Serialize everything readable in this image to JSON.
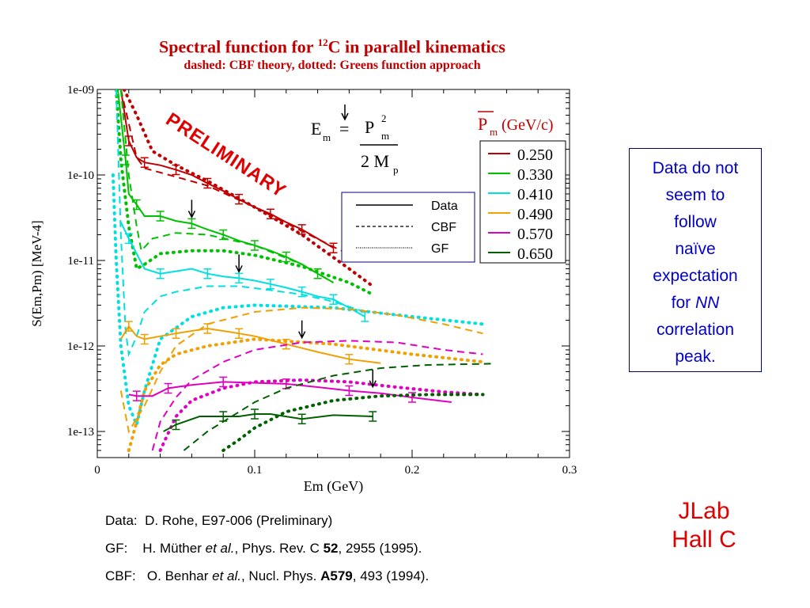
{
  "slide": {
    "title_pre": "Spectral function for ",
    "title_sup": "12",
    "title_post": "C in parallel kinematics",
    "subtitle": "dashed: CBF theory, dotted: Greens function approach",
    "note": [
      "Data do not",
      "seem to",
      "follow",
      "naïve",
      "expectation",
      "for NN",
      "correlation",
      "peak."
    ],
    "jlab": [
      "JLab",
      "Hall C"
    ],
    "refs": [
      {
        "label": "Data:",
        "text": "D. Rohe, E97-006 (Preliminary)"
      },
      {
        "label": "GF:",
        "text": "H. Müther et al., Phys. Rev. C 52, 2955 (1995)."
      },
      {
        "label": "CBF:",
        "text": "O. Benhar et al., Nucl. Phys. A579, 493 (1994)."
      }
    ]
  },
  "chart_data": {
    "type": "line",
    "y_scale": "log",
    "xlim": [
      0,
      0.3
    ],
    "ylim": [
      6e-14,
      1e-09
    ],
    "x_ticks": [
      "0",
      "0.1",
      "0.2",
      "0.3"
    ],
    "y_ticks": [
      "1e-13",
      "1e-12",
      "1e-11",
      "1e-10",
      "1e-09"
    ],
    "xlabel": "Em (GeV)",
    "ylabel": "S(Em,Pm) [MeV-4]",
    "annotation_preliminary": "PRELIMINARY",
    "formula": {
      "lhs": "E",
      "lhs_sub": "m",
      "eq": "=",
      "num": "P",
      "num_sup": "2",
      "num_sub": "m",
      "den": "2 M",
      "den_sub": "p"
    },
    "line_legend": [
      "Data",
      "CBF",
      "GF"
    ],
    "pm_legend_title": "P",
    "pm_legend_sub": "m",
    "pm_legend_unit": " (GeV/c)",
    "series": [
      {
        "name": "0.250",
        "color": "#c00000",
        "data": [
          [
            0.015,
            1e-09
          ],
          [
            0.02,
            2.5e-10
          ],
          [
            0.025,
            1.6e-10
          ],
          [
            0.03,
            1.4e-10
          ],
          [
            0.04,
            1.3e-10
          ],
          [
            0.05,
            1.15e-10
          ],
          [
            0.06,
            1e-10
          ],
          [
            0.07,
            8e-11
          ],
          [
            0.08,
            6.5e-11
          ],
          [
            0.09,
            5.2e-11
          ],
          [
            0.1,
            4.2e-11
          ],
          [
            0.11,
            3.5e-11
          ],
          [
            0.12,
            2.8e-11
          ],
          [
            0.13,
            2.3e-11
          ],
          [
            0.14,
            1.8e-11
          ],
          [
            0.15,
            1.4e-11
          ]
        ],
        "cbf": [
          [
            0.015,
            1e-09
          ],
          [
            0.025,
            1.6e-10
          ],
          [
            0.03,
            1.2e-10
          ],
          [
            0.05,
            9.5e-11
          ],
          [
            0.07,
            7.5e-11
          ],
          [
            0.1,
            4.2e-11
          ],
          [
            0.13,
            2.2e-11
          ],
          [
            0.155,
            1.3e-11
          ]
        ],
        "gf": [
          [
            0.017,
            1e-09
          ],
          [
            0.025,
            5e-10
          ],
          [
            0.035,
            1.9e-10
          ],
          [
            0.05,
            1.3e-10
          ],
          [
            0.07,
            8.5e-11
          ],
          [
            0.1,
            4.2e-11
          ],
          [
            0.13,
            2e-11
          ],
          [
            0.16,
            8e-12
          ],
          [
            0.175,
            5e-12
          ]
        ],
        "arrow_x": null
      },
      {
        "name": "0.330",
        "color": "#00c000",
        "data": [
          [
            0.013,
            1e-09
          ],
          [
            0.018,
            1.5e-10
          ],
          [
            0.02,
            6e-11
          ],
          [
            0.025,
            4.5e-11
          ],
          [
            0.03,
            3.3e-11
          ],
          [
            0.04,
            3.3e-11
          ],
          [
            0.05,
            2.9e-11
          ],
          [
            0.06,
            2.7e-11
          ],
          [
            0.07,
            2.3e-11
          ],
          [
            0.08,
            2e-11
          ],
          [
            0.09,
            1.7e-11
          ],
          [
            0.1,
            1.5e-11
          ],
          [
            0.11,
            1.3e-11
          ],
          [
            0.12,
            1.1e-11
          ],
          [
            0.13,
            9e-12
          ],
          [
            0.14,
            7e-12
          ],
          [
            0.15,
            5.5e-12
          ]
        ],
        "cbf": [
          [
            0.015,
            1e-09
          ],
          [
            0.02,
            1e-10
          ],
          [
            0.025,
            2.5e-11
          ],
          [
            0.028,
            1.3e-11
          ],
          [
            0.035,
            1.8e-11
          ],
          [
            0.05,
            2.1e-11
          ],
          [
            0.07,
            2e-11
          ],
          [
            0.1,
            1.5e-11
          ],
          [
            0.13,
            9e-12
          ],
          [
            0.15,
            5.5e-12
          ]
        ],
        "gf": [
          [
            0.012,
            1e-09
          ],
          [
            0.015,
            1.5e-10
          ],
          [
            0.02,
            2.5e-11
          ],
          [
            0.025,
            8e-12
          ],
          [
            0.03,
            9e-12
          ],
          [
            0.04,
            1.2e-11
          ],
          [
            0.06,
            1.3e-11
          ],
          [
            0.08,
            1.3e-11
          ],
          [
            0.1,
            1.15e-11
          ],
          [
            0.13,
            8.5e-12
          ],
          [
            0.16,
            5.5e-12
          ],
          [
            0.175,
            4e-12
          ]
        ],
        "arrow_x": 0.06
      },
      {
        "name": "0.410",
        "color": "#00e0e0",
        "data": [
          [
            0.015,
            2.8e-11
          ],
          [
            0.02,
            1.8e-11
          ],
          [
            0.03,
            8e-12
          ],
          [
            0.04,
            7e-12
          ],
          [
            0.06,
            8e-12
          ],
          [
            0.07,
            7e-12
          ],
          [
            0.08,
            6.5e-12
          ],
          [
            0.09,
            6.2e-12
          ],
          [
            0.1,
            5.8e-12
          ],
          [
            0.11,
            5.3e-12
          ],
          [
            0.12,
            4.8e-12
          ],
          [
            0.13,
            4.3e-12
          ],
          [
            0.14,
            3.8e-12
          ],
          [
            0.15,
            3.5e-12
          ],
          [
            0.16,
            2.8e-12
          ],
          [
            0.17,
            2.2e-12
          ]
        ],
        "cbf": [
          [
            0.012,
            1e-09
          ],
          [
            0.015,
            2e-11
          ],
          [
            0.018,
            1.5e-12
          ],
          [
            0.02,
            8e-13
          ],
          [
            0.025,
            1.3e-12
          ],
          [
            0.03,
            2.5e-12
          ],
          [
            0.04,
            3.8e-12
          ],
          [
            0.05,
            4.3e-12
          ],
          [
            0.07,
            5e-12
          ],
          [
            0.09,
            5e-12
          ],
          [
            0.11,
            4.5e-12
          ],
          [
            0.13,
            4e-12
          ],
          [
            0.15,
            3.3e-12
          ],
          [
            0.17,
            2.5e-12
          ]
        ],
        "gf": [
          [
            0.01,
            1e-10
          ],
          [
            0.012,
            1e-11
          ],
          [
            0.015,
            1e-12
          ],
          [
            0.02,
            2e-13
          ],
          [
            0.025,
            1.2e-13
          ],
          [
            0.03,
            3e-13
          ],
          [
            0.04,
            1.2e-12
          ],
          [
            0.06,
            2.2e-12
          ],
          [
            0.08,
            2.8e-12
          ],
          [
            0.1,
            3e-12
          ],
          [
            0.15,
            2.8e-12
          ],
          [
            0.2,
            2.2e-12
          ],
          [
            0.245,
            1.8e-12
          ]
        ],
        "arrow_x": 0.09
      },
      {
        "name": "0.490",
        "color": "#f0a000",
        "data": [
          [
            0.015,
            1.2e-12
          ],
          [
            0.02,
            1.7e-12
          ],
          [
            0.025,
            1.3e-12
          ],
          [
            0.03,
            1.2e-12
          ],
          [
            0.04,
            1.3e-12
          ],
          [
            0.05,
            1.4e-12
          ],
          [
            0.06,
            1.5e-12
          ],
          [
            0.07,
            1.6e-12
          ],
          [
            0.08,
            1.5e-12
          ],
          [
            0.09,
            1.4e-12
          ],
          [
            0.1,
            1.3e-12
          ],
          [
            0.12,
            1.05e-12
          ],
          [
            0.14,
            8.5e-13
          ],
          [
            0.16,
            7e-13
          ],
          [
            0.18,
            6.3e-13
          ]
        ],
        "cbf": [
          [
            0.015,
            3e-13
          ],
          [
            0.02,
            1e-13
          ],
          [
            0.03,
            2e-13
          ],
          [
            0.04,
            5e-13
          ],
          [
            0.05,
            1e-12
          ],
          [
            0.07,
            1.8e-12
          ],
          [
            0.1,
            2.5e-12
          ],
          [
            0.13,
            2.8e-12
          ],
          [
            0.16,
            2.7e-12
          ],
          [
            0.19,
            2.3e-12
          ],
          [
            0.22,
            1.8e-12
          ],
          [
            0.245,
            1.4e-12
          ]
        ],
        "gf": [
          [
            0.02,
            6e-14
          ],
          [
            0.025,
            1.3e-13
          ],
          [
            0.03,
            3e-13
          ],
          [
            0.04,
            6e-13
          ],
          [
            0.05,
            8e-13
          ],
          [
            0.07,
            1e-12
          ],
          [
            0.1,
            1.2e-12
          ],
          [
            0.15,
            1.05e-12
          ],
          [
            0.2,
            8e-13
          ],
          [
            0.245,
            6.5e-13
          ]
        ],
        "arrow_x": 0.13
      },
      {
        "name": "0.570",
        "color": "#e000c0",
        "data": [
          [
            0.02,
            2.7e-13
          ],
          [
            0.025,
            2.6e-13
          ],
          [
            0.035,
            2.6e-13
          ],
          [
            0.045,
            3.2e-13
          ],
          [
            0.06,
            3.5e-13
          ],
          [
            0.08,
            3.8e-13
          ],
          [
            0.1,
            3.7e-13
          ],
          [
            0.12,
            3.6e-13
          ],
          [
            0.14,
            3.3e-13
          ],
          [
            0.16,
            3e-13
          ],
          [
            0.18,
            2.8e-13
          ],
          [
            0.2,
            2.5e-13
          ],
          [
            0.225,
            2.2e-13
          ]
        ],
        "cbf": [
          [
            0.035,
            6e-14
          ],
          [
            0.04,
            1.3e-13
          ],
          [
            0.05,
            2.5e-13
          ],
          [
            0.06,
            4e-13
          ],
          [
            0.08,
            6.5e-13
          ],
          [
            0.1,
            9e-13
          ],
          [
            0.13,
            1.1e-12
          ],
          [
            0.16,
            1.15e-12
          ],
          [
            0.19,
            1.1e-12
          ],
          [
            0.22,
            9e-13
          ],
          [
            0.245,
            8e-13
          ]
        ],
        "gf": [
          [
            0.04,
            6e-14
          ],
          [
            0.05,
            1.5e-13
          ],
          [
            0.06,
            2.3e-13
          ],
          [
            0.08,
            3.2e-13
          ],
          [
            0.1,
            3.8e-13
          ],
          [
            0.13,
            4e-13
          ],
          [
            0.16,
            3.8e-13
          ],
          [
            0.19,
            3.3e-13
          ],
          [
            0.22,
            2.9e-13
          ],
          [
            0.245,
            2.7e-13
          ]
        ],
        "arrow_x": 0.175
      },
      {
        "name": "0.650",
        "color": "#006000",
        "data": [
          [
            0.042,
            1e-13
          ],
          [
            0.05,
            1.2e-13
          ],
          [
            0.065,
            1.5e-13
          ],
          [
            0.08,
            1.5e-13
          ],
          [
            0.09,
            1.5e-13
          ],
          [
            0.1,
            1.6e-13
          ],
          [
            0.11,
            1.6e-13
          ],
          [
            0.13,
            1.4e-13
          ],
          [
            0.15,
            1.55e-13
          ],
          [
            0.175,
            1.5e-13
          ]
        ],
        "cbf": [
          [
            0.055,
            6e-14
          ],
          [
            0.07,
            1e-13
          ],
          [
            0.08,
            1.3e-13
          ],
          [
            0.1,
            2.2e-13
          ],
          [
            0.12,
            3.2e-13
          ],
          [
            0.15,
            4.5e-13
          ],
          [
            0.18,
            5.5e-13
          ],
          [
            0.21,
            6e-13
          ],
          [
            0.25,
            6.2e-13
          ]
        ],
        "gf": [
          [
            0.08,
            6e-14
          ],
          [
            0.09,
            8e-14
          ],
          [
            0.1,
            1.1e-13
          ],
          [
            0.12,
            1.7e-13
          ],
          [
            0.15,
            2.3e-13
          ],
          [
            0.18,
            2.6e-13
          ],
          [
            0.21,
            2.7e-13
          ],
          [
            0.245,
            2.7e-13
          ]
        ],
        "arrow_x": null
      }
    ]
  }
}
